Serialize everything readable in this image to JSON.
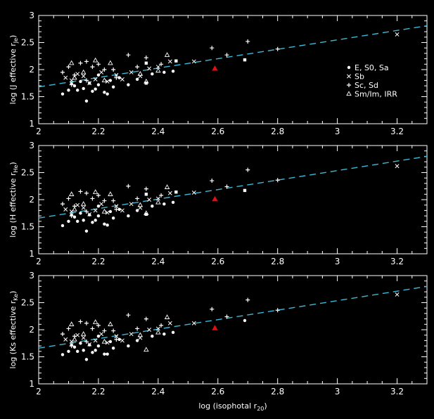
{
  "figure": {
    "background": "#000000",
    "foreground": "#ffffff",
    "fit_color": "#3bb9d6",
    "highlight_color": "#e01010"
  },
  "legend": [
    {
      "symbol": "dot",
      "label": "E, S0, Sa"
    },
    {
      "symbol": "cross",
      "label": "Sb"
    },
    {
      "symbol": "plus",
      "label": "Sc, Sd"
    },
    {
      "symbol": "triangle",
      "label": "Sm/Im, IRR"
    }
  ],
  "chart_data": [
    {
      "type": "scatter",
      "panel": "J",
      "ylabel_parts": [
        "log (J effective r",
        "Je",
        ")"
      ],
      "xlabel_parts": [
        "",
        "",
        ""
      ],
      "xlim": [
        2.0,
        3.3
      ],
      "ylim": [
        1.0,
        3.0
      ],
      "xticks": [
        "2",
        "2.2",
        "2.4",
        "2.6",
        "2.8",
        "3",
        "3.2"
      ],
      "yticks": [
        "1",
        "1.5",
        "2",
        "2.5",
        "3"
      ],
      "fit_line": {
        "x": [
          2.0,
          3.3
        ],
        "y": [
          1.68,
          2.81
        ]
      },
      "highlight": {
        "x": 2.59,
        "y": 2.02
      },
      "series": [
        {
          "symbol": "dot",
          "points": [
            [
              2.08,
              1.55
            ],
            [
              2.1,
              1.62
            ],
            [
              2.12,
              1.7
            ],
            [
              2.14,
              1.78
            ],
            [
              2.15,
              1.65
            ],
            [
              2.16,
              1.42
            ],
            [
              2.18,
              1.6
            ],
            [
              2.2,
              1.72
            ],
            [
              2.22,
              1.58
            ],
            [
              2.24,
              1.8
            ],
            [
              2.25,
              1.68
            ],
            [
              2.27,
              1.85
            ],
            [
              2.3,
              1.72
            ],
            [
              2.33,
              1.82
            ],
            [
              2.38,
              1.92
            ],
            [
              2.42,
              1.95
            ],
            [
              2.45,
              1.97
            ],
            [
              2.2,
              1.9
            ],
            [
              2.13,
              1.62
            ],
            [
              2.17,
              1.75
            ],
            [
              2.23,
              1.55
            ],
            [
              2.11,
              1.74
            ],
            [
              2.19,
              1.64
            ]
          ]
        },
        {
          "symbol": "square",
          "points": [
            [
              2.69,
              2.18
            ],
            [
              2.36,
              1.75
            ],
            [
              2.46,
              2.16
            ],
            [
              2.36,
              2.12
            ]
          ]
        },
        {
          "symbol": "cross",
          "points": [
            [
              2.09,
              1.85
            ],
            [
              2.11,
              1.8
            ],
            [
              2.13,
              1.92
            ],
            [
              2.15,
              1.88
            ],
            [
              2.17,
              1.75
            ],
            [
              2.19,
              1.82
            ],
            [
              2.21,
              1.95
            ],
            [
              2.23,
              1.78
            ],
            [
              2.26,
              1.9
            ],
            [
              2.28,
              1.82
            ],
            [
              2.31,
              1.95
            ],
            [
              2.34,
              1.88
            ],
            [
              2.37,
              2.02
            ],
            [
              2.4,
              2.05
            ],
            [
              2.44,
              2.15
            ],
            [
              3.2,
              2.65
            ],
            [
              2.52,
              2.15
            ]
          ]
        },
        {
          "symbol": "plus",
          "points": [
            [
              2.08,
              1.95
            ],
            [
              2.1,
              2.05
            ],
            [
              2.12,
              1.9
            ],
            [
              2.14,
              2.12
            ],
            [
              2.16,
              2.15
            ],
            [
              2.18,
              2.05
            ],
            [
              2.2,
              2.1
            ],
            [
              2.22,
              2.0
            ],
            [
              2.25,
              2.0
            ],
            [
              2.3,
              2.27
            ],
            [
              2.33,
              2.05
            ],
            [
              2.36,
              2.22
            ],
            [
              2.41,
              2.1
            ],
            [
              2.58,
              2.4
            ],
            [
              2.63,
              2.27
            ],
            [
              2.7,
              2.52
            ],
            [
              2.8,
              2.38
            ],
            [
              2.11,
              1.72
            ],
            [
              2.16,
              1.8
            ],
            [
              2.26,
              1.85
            ]
          ]
        },
        {
          "symbol": "triangle",
          "points": [
            [
              2.11,
              2.12
            ],
            [
              2.12,
              1.85
            ],
            [
              2.19,
              2.17
            ],
            [
              2.24,
              2.12
            ],
            [
              2.34,
              1.92
            ],
            [
              2.4,
              1.98
            ],
            [
              2.43,
              2.27
            ],
            [
              2.36,
              1.78
            ],
            [
              2.15,
              1.95
            ],
            [
              2.22,
              1.8
            ]
          ]
        }
      ]
    },
    {
      "type": "scatter",
      "panel": "H",
      "ylabel_parts": [
        "log (H effective r",
        "He",
        ")"
      ],
      "xlabel_parts": [
        "",
        "",
        ""
      ],
      "xlim": [
        2.0,
        3.3
      ],
      "ylim": [
        1.0,
        3.0
      ],
      "xticks": [
        "2",
        "2.2",
        "2.4",
        "2.6",
        "2.8",
        "3",
        "3.2"
      ],
      "yticks": [
        "1",
        "1.5",
        "2",
        "2.5",
        "3"
      ],
      "fit_line": {
        "x": [
          2.0,
          3.3
        ],
        "y": [
          1.66,
          2.8
        ]
      },
      "highlight": {
        "x": 2.59,
        "y": 2.01
      },
      "series": [
        {
          "symbol": "dot",
          "points": [
            [
              2.08,
              1.52
            ],
            [
              2.1,
              1.6
            ],
            [
              2.12,
              1.68
            ],
            [
              2.14,
              1.75
            ],
            [
              2.15,
              1.62
            ],
            [
              2.16,
              1.42
            ],
            [
              2.18,
              1.58
            ],
            [
              2.2,
              1.7
            ],
            [
              2.22,
              1.55
            ],
            [
              2.24,
              1.78
            ],
            [
              2.25,
              1.66
            ],
            [
              2.27,
              1.82
            ],
            [
              2.3,
              1.7
            ],
            [
              2.33,
              1.8
            ],
            [
              2.38,
              1.88
            ],
            [
              2.42,
              1.92
            ],
            [
              2.45,
              1.95
            ],
            [
              2.2,
              1.88
            ],
            [
              2.13,
              1.6
            ],
            [
              2.17,
              1.72
            ],
            [
              2.23,
              1.53
            ],
            [
              2.11,
              1.72
            ],
            [
              2.19,
              1.62
            ]
          ]
        },
        {
          "symbol": "square",
          "points": [
            [
              2.69,
              2.17
            ],
            [
              2.36,
              1.73
            ],
            [
              2.46,
              2.14
            ],
            [
              2.36,
              2.1
            ]
          ]
        },
        {
          "symbol": "cross",
          "points": [
            [
              2.09,
              1.82
            ],
            [
              2.11,
              1.78
            ],
            [
              2.13,
              1.9
            ],
            [
              2.15,
              1.85
            ],
            [
              2.17,
              1.73
            ],
            [
              2.19,
              1.8
            ],
            [
              2.21,
              1.92
            ],
            [
              2.23,
              1.76
            ],
            [
              2.26,
              1.88
            ],
            [
              2.28,
              1.8
            ],
            [
              2.31,
              1.92
            ],
            [
              2.34,
              1.85
            ],
            [
              2.37,
              2.0
            ],
            [
              2.4,
              2.02
            ],
            [
              2.44,
              2.12
            ],
            [
              3.2,
              2.62
            ],
            [
              2.52,
              2.13
            ]
          ]
        },
        {
          "symbol": "plus",
          "points": [
            [
              2.08,
              1.92
            ],
            [
              2.1,
              2.02
            ],
            [
              2.12,
              1.88
            ],
            [
              2.14,
              2.15
            ],
            [
              2.16,
              2.12
            ],
            [
              2.18,
              2.02
            ],
            [
              2.2,
              2.08
            ],
            [
              2.22,
              1.98
            ],
            [
              2.25,
              1.98
            ],
            [
              2.3,
              2.25
            ],
            [
              2.33,
              2.02
            ],
            [
              2.36,
              2.2
            ],
            [
              2.41,
              2.08
            ],
            [
              2.58,
              2.35
            ],
            [
              2.63,
              2.24
            ],
            [
              2.7,
              2.55
            ],
            [
              2.8,
              2.36
            ],
            [
              2.11,
              1.7
            ],
            [
              2.16,
              1.78
            ],
            [
              2.26,
              1.82
            ]
          ]
        },
        {
          "symbol": "triangle",
          "points": [
            [
              2.11,
              2.1
            ],
            [
              2.12,
              1.82
            ],
            [
              2.19,
              2.14
            ],
            [
              2.24,
              2.1
            ],
            [
              2.34,
              1.9
            ],
            [
              2.4,
              1.95
            ],
            [
              2.43,
              2.23
            ],
            [
              2.36,
              1.75
            ],
            [
              2.15,
              1.92
            ],
            [
              2.22,
              1.78
            ]
          ]
        }
      ]
    },
    {
      "type": "scatter",
      "panel": "Ks",
      "ylabel_parts": [
        "log (Ks effective r",
        "Ke",
        ")"
      ],
      "xlabel_parts": [
        "log (isophotal r",
        "20",
        ")"
      ],
      "xlim": [
        2.0,
        3.3
      ],
      "ylim": [
        1.0,
        3.0
      ],
      "xticks": [
        "2",
        "2.2",
        "2.4",
        "2.6",
        "2.8",
        "3",
        "3.2"
      ],
      "yticks": [
        "1",
        "1.5",
        "2",
        "2.5",
        "3"
      ],
      "fit_line": {
        "x": [
          2.0,
          3.3
        ],
        "y": [
          1.66,
          2.8
        ]
      },
      "highlight": {
        "x": 2.59,
        "y": 2.03
      },
      "series": [
        {
          "symbol": "dot",
          "points": [
            [
              2.08,
              1.54
            ],
            [
              2.1,
              1.6
            ],
            [
              2.12,
              1.68
            ],
            [
              2.14,
              1.75
            ],
            [
              2.15,
              1.62
            ],
            [
              2.16,
              1.45
            ],
            [
              2.18,
              1.58
            ],
            [
              2.2,
              1.7
            ],
            [
              2.22,
              1.55
            ],
            [
              2.24,
              1.78
            ],
            [
              2.25,
              1.66
            ],
            [
              2.27,
              1.82
            ],
            [
              2.3,
              1.7
            ],
            [
              2.33,
              1.8
            ],
            [
              2.38,
              1.88
            ],
            [
              2.42,
              1.92
            ],
            [
              2.45,
              1.95
            ],
            [
              2.2,
              1.88
            ],
            [
              2.13,
              1.6
            ],
            [
              2.17,
              1.72
            ],
            [
              2.23,
              1.55
            ],
            [
              2.11,
              1.72
            ],
            [
              2.19,
              1.62
            ],
            [
              2.69,
              2.17
            ]
          ]
        },
        {
          "symbol": "cross",
          "points": [
            [
              2.09,
              1.82
            ],
            [
              2.11,
              1.78
            ],
            [
              2.13,
              1.9
            ],
            [
              2.15,
              1.85
            ],
            [
              2.17,
              1.73
            ],
            [
              2.19,
              1.8
            ],
            [
              2.21,
              1.92
            ],
            [
              2.23,
              1.76
            ],
            [
              2.26,
              1.88
            ],
            [
              2.28,
              1.8
            ],
            [
              2.31,
              1.92
            ],
            [
              2.34,
              1.85
            ],
            [
              2.37,
              2.0
            ],
            [
              2.4,
              2.02
            ],
            [
              2.44,
              2.12
            ],
            [
              3.2,
              2.65
            ],
            [
              2.52,
              2.12
            ]
          ]
        },
        {
          "symbol": "plus",
          "points": [
            [
              2.08,
              1.92
            ],
            [
              2.1,
              2.02
            ],
            [
              2.12,
              1.88
            ],
            [
              2.14,
              2.15
            ],
            [
              2.16,
              2.12
            ],
            [
              2.18,
              2.02
            ],
            [
              2.2,
              2.08
            ],
            [
              2.22,
              1.98
            ],
            [
              2.25,
              1.98
            ],
            [
              2.3,
              2.27
            ],
            [
              2.33,
              2.02
            ],
            [
              2.36,
              2.2
            ],
            [
              2.41,
              2.08
            ],
            [
              2.58,
              2.38
            ],
            [
              2.63,
              2.24
            ],
            [
              2.7,
              2.55
            ],
            [
              2.8,
              2.36
            ],
            [
              2.11,
              1.7
            ],
            [
              2.16,
              1.78
            ],
            [
              2.26,
              1.82
            ]
          ]
        },
        {
          "symbol": "triangle",
          "points": [
            [
              2.11,
              2.1
            ],
            [
              2.12,
              1.82
            ],
            [
              2.19,
              2.14
            ],
            [
              2.24,
              2.1
            ],
            [
              2.34,
              1.9
            ],
            [
              2.4,
              1.95
            ],
            [
              2.43,
              2.23
            ],
            [
              2.36,
              1.63
            ],
            [
              2.15,
              1.92
            ],
            [
              2.22,
              1.78
            ]
          ]
        }
      ]
    }
  ]
}
